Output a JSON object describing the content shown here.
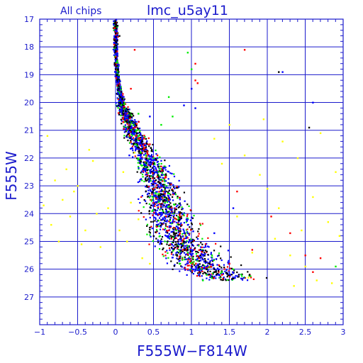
{
  "chart_data": {
    "type": "scatter",
    "title": "lmc_u5ay11",
    "subtitle": "All chips",
    "xlabel": "F555W−F814W",
    "ylabel": "F555W",
    "xlim": [
      -1,
      3
    ],
    "ylim": [
      28,
      17
    ],
    "y_inverted": true,
    "grid": true,
    "xticks": [
      -1,
      -0.5,
      0,
      0.5,
      1,
      1.5,
      2,
      2.5,
      3
    ],
    "xtick_labels": [
      "−1",
      "−0.5",
      "0",
      "0.5",
      "1",
      "1.5",
      "2",
      "2.5",
      "3"
    ],
    "yticks": [
      17,
      18,
      19,
      20,
      21,
      22,
      23,
      24,
      25,
      26,
      27
    ],
    "ytick_labels": [
      "17",
      "18",
      "19",
      "20",
      "21",
      "22",
      "23",
      "24",
      "25",
      "26",
      "27"
    ],
    "series_colors": {
      "black": "#000000",
      "red": "#ff0000",
      "green": "#00ee00",
      "blue": "#0000ff",
      "yellow": "#ffff00"
    },
    "ridge_line": [
      [
        0.0,
        17.0
      ],
      [
        0.0,
        18.0
      ],
      [
        0.02,
        19.0
      ],
      [
        0.07,
        20.0
      ],
      [
        0.22,
        21.0
      ],
      [
        0.42,
        22.0
      ],
      [
        0.58,
        23.0
      ],
      [
        0.68,
        24.0
      ],
      [
        0.85,
        25.0
      ],
      [
        1.2,
        26.0
      ],
      [
        1.55,
        26.4
      ]
    ],
    "series": [
      {
        "color": "red",
        "points": [
          [
            1.05,
            18.6
          ],
          [
            1.05,
            19.2
          ],
          [
            1.08,
            19.3
          ],
          [
            0.1,
            20.7
          ],
          [
            0.45,
            21.5
          ],
          [
            0.6,
            22.3
          ],
          [
            0.7,
            23.5
          ],
          [
            0.8,
            24.2
          ],
          [
            0.9,
            24.9
          ],
          [
            1.1,
            25.6
          ],
          [
            1.25,
            25.9
          ],
          [
            1.4,
            26.2
          ],
          [
            1.5,
            25.8
          ],
          [
            0.25,
            20.9
          ],
          [
            0.55,
            21.9
          ],
          [
            1.7,
            18.1
          ],
          [
            2.5,
            25.5
          ],
          [
            2.6,
            26.1
          ],
          [
            0.3,
            21.3
          ],
          [
            0.5,
            23.1
          ],
          [
            1.6,
            23.2
          ],
          [
            2.3,
            24.7
          ],
          [
            0.95,
            26.0
          ],
          [
            0.7,
            24.6
          ],
          [
            1.8,
            25.3
          ],
          [
            0.2,
            19.5
          ],
          [
            0.25,
            18.1
          ],
          [
            2.05,
            24.1
          ],
          [
            2.7,
            25.6
          ],
          [
            0.85,
            24.1
          ]
        ]
      },
      {
        "color": "green",
        "points": [
          [
            0.95,
            18.2
          ],
          [
            1.0,
            18.8
          ],
          [
            0.75,
            20.5
          ],
          [
            0.5,
            22.0
          ],
          [
            0.65,
            23.6
          ],
          [
            0.8,
            24.6
          ],
          [
            0.95,
            25.4
          ],
          [
            1.2,
            26.2
          ],
          [
            1.4,
            26.1
          ],
          [
            1.55,
            26.0
          ],
          [
            0.4,
            21.9
          ],
          [
            0.3,
            21.2
          ],
          [
            0.6,
            20.8
          ],
          [
            1.15,
            26.4
          ],
          [
            0.85,
            25.8
          ],
          [
            2.9,
            25.9
          ],
          [
            0.7,
            19.8
          ],
          [
            0.3,
            20.4
          ]
        ]
      },
      {
        "color": "blue",
        "points": [
          [
            0.0,
            18.5
          ],
          [
            0.03,
            19.5
          ],
          [
            0.08,
            20.2
          ],
          [
            0.2,
            20.9
          ],
          [
            0.35,
            21.6
          ],
          [
            0.5,
            22.3
          ],
          [
            0.6,
            23.0
          ],
          [
            0.67,
            23.7
          ],
          [
            0.75,
            24.3
          ],
          [
            0.85,
            24.9
          ],
          [
            1.0,
            25.5
          ],
          [
            1.2,
            25.9
          ],
          [
            1.35,
            26.2
          ],
          [
            1.0,
            19.5
          ],
          [
            1.05,
            20.2
          ],
          [
            0.45,
            20.5
          ],
          [
            2.2,
            18.9
          ],
          [
            0.55,
            23.4
          ],
          [
            0.7,
            24.8
          ],
          [
            1.05,
            26.0
          ],
          [
            0.9,
            20.1
          ],
          [
            1.3,
            24.7
          ],
          [
            0.4,
            22.4
          ],
          [
            0.6,
            25.0
          ],
          [
            1.55,
            23.8
          ],
          [
            2.6,
            20.0
          ],
          [
            0.18,
            21.9
          ]
        ]
      },
      {
        "color": "black",
        "points": [
          [
            0.0,
            17.1
          ],
          [
            0.0,
            17.5
          ],
          [
            -0.02,
            18.0
          ],
          [
            0.0,
            18.4
          ],
          [
            0.02,
            19.0
          ],
          [
            0.04,
            19.5
          ],
          [
            0.06,
            19.8
          ],
          [
            0.1,
            20.3
          ],
          [
            0.18,
            20.7
          ],
          [
            0.28,
            21.1
          ],
          [
            0.4,
            21.6
          ],
          [
            0.5,
            22.2
          ],
          [
            0.58,
            22.9
          ],
          [
            0.64,
            23.5
          ],
          [
            0.7,
            24.1
          ],
          [
            0.8,
            24.7
          ],
          [
            0.95,
            25.3
          ],
          [
            1.1,
            25.7
          ],
          [
            1.3,
            26.1
          ],
          [
            0.05,
            17.6
          ],
          [
            0.03,
            18.8
          ],
          [
            0.35,
            21.4
          ],
          [
            0.6,
            23.3
          ],
          [
            0.9,
            25.0
          ],
          [
            1.2,
            26.0
          ],
          [
            2.15,
            18.9
          ],
          [
            2.55,
            20.9
          ],
          [
            0.45,
            24.5
          ]
        ]
      },
      {
        "color": "yellow",
        "points": [
          [
            -0.9,
            21.2
          ],
          [
            -0.8,
            22.8
          ],
          [
            -0.7,
            23.5
          ],
          [
            -0.6,
            24.1
          ],
          [
            -0.5,
            23.0
          ],
          [
            -0.4,
            24.6
          ],
          [
            -0.3,
            22.1
          ],
          [
            -0.2,
            25.2
          ],
          [
            -0.1,
            23.8
          ],
          [
            0.05,
            24.6
          ],
          [
            0.1,
            22.5
          ],
          [
            0.15,
            25.0
          ],
          [
            0.2,
            23.6
          ],
          [
            0.3,
            24.2
          ],
          [
            0.35,
            25.6
          ],
          [
            -0.85,
            24.4
          ],
          [
            -0.95,
            23.7
          ],
          [
            -0.65,
            22.4
          ],
          [
            -0.45,
            25.1
          ],
          [
            -0.25,
            24.0
          ],
          [
            1.5,
            20.8
          ],
          [
            1.7,
            21.9
          ],
          [
            1.9,
            22.6
          ],
          [
            2.0,
            23.1
          ],
          [
            2.2,
            21.4
          ],
          [
            2.4,
            22.0
          ],
          [
            2.6,
            23.4
          ],
          [
            2.8,
            24.3
          ],
          [
            2.5,
            25.9
          ],
          [
            2.3,
            25.5
          ],
          [
            2.1,
            24.9
          ],
          [
            1.8,
            25.4
          ],
          [
            1.6,
            24.1
          ],
          [
            2.7,
            21.1
          ],
          [
            2.9,
            22.5
          ],
          [
            2.95,
            24.8
          ],
          [
            1.4,
            22.2
          ],
          [
            1.95,
            20.6
          ],
          [
            2.35,
            26.6
          ],
          [
            2.65,
            26.4
          ],
          [
            1.3,
            21.3
          ],
          [
            2.15,
            23.8
          ],
          [
            -0.35,
            21.7
          ],
          [
            -0.75,
            25.0
          ],
          [
            0.25,
            21.8
          ],
          [
            0.45,
            25.8
          ],
          [
            1.75,
            26.3
          ],
          [
            2.45,
            24.6
          ],
          [
            2.85,
            26.5
          ],
          [
            -0.55,
            23.2
          ]
        ]
      }
    ]
  }
}
